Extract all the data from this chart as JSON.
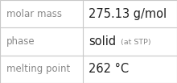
{
  "rows": [
    {
      "label": "molar mass",
      "value": "275.13 g/mol",
      "suffix": null
    },
    {
      "label": "phase",
      "value": "solid",
      "suffix": " (at STP)"
    },
    {
      "label": "melting point",
      "value": "262 °C",
      "suffix": null
    }
  ],
  "col_split": 0.47,
  "background_color": "#ffffff",
  "border_color": "#c8c8c8",
  "label_fontsize": 8.5,
  "value_fontsize": 10.5,
  "suffix_fontsize": 6.8,
  "text_color": "#333333",
  "label_color": "#888888",
  "value_color": "#222222"
}
